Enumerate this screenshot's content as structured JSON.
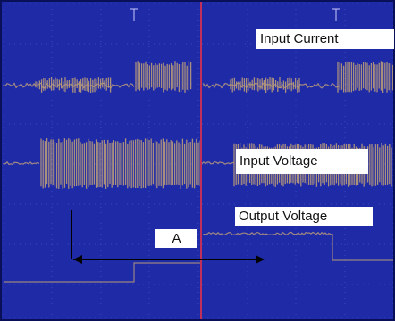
{
  "chart_data": {
    "type": "line",
    "series": [
      {
        "name": "Input Current"
      },
      {
        "name": "Input Voltage"
      },
      {
        "name": "Output Voltage"
      }
    ],
    "annotations": [
      {
        "label": "A",
        "note": "double-headed arrow spanning the interval between the first and second disturbance"
      }
    ],
    "grid": true,
    "colors": {
      "screen": "#1f2aa6",
      "trace": "#b89a7a",
      "cursor": "#c0305a",
      "arrow": "#000000"
    }
  }
}
